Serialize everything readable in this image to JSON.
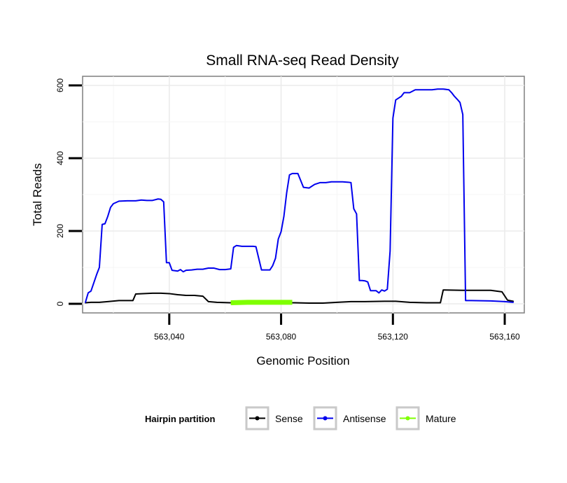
{
  "chart_data": {
    "type": "line",
    "title": "Small RNA-seq Read Density",
    "xlabel": "Genomic Position",
    "ylabel": "Total Reads",
    "xlim": [
      563009,
      563167
    ],
    "ylim": [
      -25,
      625
    ],
    "x_ticks": [
      563040,
      563080,
      563120,
      563160
    ],
    "x_tick_labels": [
      "563,040",
      "563,080",
      "563,120",
      "563,160"
    ],
    "y_ticks": [
      0,
      200,
      400,
      600
    ],
    "y_tick_labels": [
      "0",
      "200",
      "400",
      "600"
    ],
    "grid": true,
    "legend": {
      "title": "Hairpin partition",
      "position": "bottom",
      "entries": [
        "Sense",
        "Antisense",
        "Mature"
      ]
    },
    "series": [
      {
        "name": "Sense",
        "color": "#000000",
        "x": [
          563010,
          563012,
          563015,
          563018,
          563022,
          563027,
          563028,
          563034,
          563037,
          563040,
          563043,
          563046,
          563049,
          563052,
          563054,
          563057,
          563062,
          563068,
          563074,
          563080,
          563085,
          563090,
          563095,
          563100,
          563105,
          563110,
          563117,
          563121,
          563126,
          563132,
          563137,
          563138,
          563145,
          563155,
          563159,
          563161,
          563163
        ],
        "y": [
          3,
          4,
          4,
          6,
          9,
          9,
          27,
          29,
          29,
          28,
          25,
          23,
          23,
          21,
          6,
          4,
          3,
          3,
          3,
          3,
          3,
          2,
          2,
          4,
          6,
          6,
          7,
          7,
          4,
          3,
          3,
          38,
          37,
          37,
          33,
          10,
          7
        ]
      },
      {
        "name": "Antisense",
        "color": "#0000ee",
        "x": [
          563010,
          563011,
          563012,
          563014,
          563015,
          563016,
          563017,
          563018,
          563019,
          563020,
          563022,
          563025,
          563028,
          563030,
          563032,
          563034,
          563036,
          563037,
          563038,
          563039,
          563040,
          563041,
          563043,
          563044,
          563045,
          563046,
          563048,
          563050,
          563052,
          563054,
          563056,
          563058,
          563060,
          563062,
          563063,
          563064,
          563066,
          563069,
          563070,
          563071,
          563073,
          563075,
          563076,
          563077,
          563078,
          563079,
          563080,
          563081,
          563082,
          563083,
          563084,
          563086,
          563088,
          563090,
          563092,
          563094,
          563096,
          563098,
          563100,
          563102,
          563104,
          563105,
          563106,
          563107,
          563108,
          563109,
          563110,
          563111,
          563112,
          563113,
          563114,
          563115,
          563116,
          563117,
          563118,
          563119,
          563120,
          563121,
          563122,
          563123,
          563124,
          563125,
          563126,
          563128,
          563130,
          563132,
          563134,
          563136,
          563138,
          563140,
          563141,
          563142,
          563143,
          563144,
          563145,
          563146,
          563147,
          563148,
          563155,
          563160,
          563163
        ],
        "y": [
          4,
          30,
          35,
          80,
          100,
          218,
          220,
          240,
          265,
          275,
          282,
          283,
          283,
          285,
          284,
          284,
          288,
          287,
          280,
          113,
          113,
          92,
          90,
          94,
          88,
          92,
          93,
          95,
          95,
          98,
          98,
          94,
          94,
          96,
          155,
          160,
          158,
          158,
          158,
          157,
          93,
          93,
          93,
          105,
          125,
          178,
          198,
          240,
          305,
          354,
          358,
          358,
          320,
          318,
          328,
          333,
          333,
          335,
          335,
          335,
          334,
          333,
          261,
          247,
          64,
          64,
          63,
          60,
          36,
          36,
          36,
          30,
          38,
          35,
          40,
          145,
          510,
          560,
          565,
          570,
          580,
          580,
          580,
          588,
          588,
          588,
          588,
          590,
          590,
          588,
          580,
          570,
          562,
          553,
          520,
          9,
          9,
          9,
          8,
          6,
          4
        ]
      },
      {
        "name": "Mature",
        "color": "#7fff00",
        "x": [
          563062,
          563068,
          563074,
          563080,
          563084
        ],
        "y": [
          3,
          4,
          4,
          4,
          4
        ]
      }
    ]
  }
}
